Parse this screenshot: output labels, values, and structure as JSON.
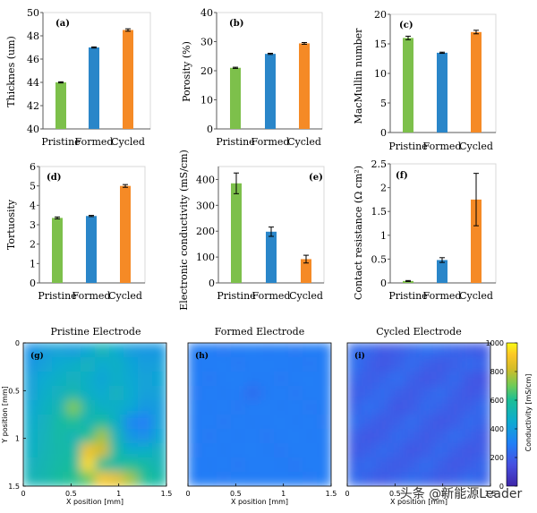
{
  "colors": {
    "pristine": "#7dc04b",
    "formed": "#2a86c9",
    "cycled": "#f58a26"
  },
  "chart_data": [
    {
      "type": "bar",
      "panel": "(a)",
      "ylabel": "Thicknes (um)",
      "categories": [
        "Pristine",
        "Formed",
        "Cycled"
      ],
      "values": [
        44.0,
        47.0,
        48.5
      ],
      "errors": [
        0.05,
        0.05,
        0.1
      ],
      "ylim": [
        40,
        50
      ],
      "yticks": [
        "40",
        "42",
        "44",
        "46",
        "48",
        "50"
      ]
    },
    {
      "type": "bar",
      "panel": "(b)",
      "ylabel": "Porosity (%)",
      "categories": [
        "Pristine",
        "Formed",
        "Cycled"
      ],
      "values": [
        21,
        25.8,
        29.4
      ],
      "errors": [
        0.2,
        0.2,
        0.3
      ],
      "ylim": [
        0,
        40
      ],
      "yticks": [
        "0",
        "10",
        "20",
        "30",
        "40"
      ]
    },
    {
      "type": "bar",
      "panel": "(c)",
      "ylabel": "MacMullin number",
      "categories": [
        "Pristine",
        "Formed",
        "Cycled"
      ],
      "values": [
        16.0,
        13.5,
        17.0
      ],
      "errors": [
        0.3,
        0.1,
        0.3
      ],
      "ylim": [
        0,
        20
      ],
      "yticks": [
        "0",
        "5",
        "10",
        "15",
        "20"
      ]
    },
    {
      "type": "bar",
      "panel": "(d)",
      "ylabel": "Tortuosity",
      "categories": [
        "Pristine",
        "Formed",
        "Cycled"
      ],
      "values": [
        3.35,
        3.45,
        5.0
      ],
      "errors": [
        0.05,
        0.03,
        0.07
      ],
      "ylim": [
        0,
        6
      ],
      "yticks": [
        "0",
        "1",
        "2",
        "3",
        "4",
        "5",
        "6"
      ]
    },
    {
      "type": "bar",
      "panel": "(e)",
      "ylabel": "Electronic conductivity (mS/cm)",
      "categories": [
        "Pristine",
        "Formed",
        "Cycled"
      ],
      "values": [
        385,
        198,
        92
      ],
      "errors": [
        40,
        18,
        15
      ],
      "ylim": [
        0,
        450
      ],
      "yticks": [
        "0",
        "100",
        "200",
        "300",
        "400"
      ]
    },
    {
      "type": "bar",
      "panel": "(f)",
      "ylabel": "Contact resistance (Ω cm²)",
      "categories": [
        "Pristine",
        "Formed",
        "Cycled"
      ],
      "values": [
        0.04,
        0.48,
        1.75
      ],
      "errors": [
        0.01,
        0.05,
        0.55
      ],
      "ylim": [
        0,
        2.5
      ],
      "yticks": [
        "0",
        "0.5",
        "1",
        "1.5",
        "2",
        "2.5"
      ]
    },
    {
      "type": "heatmap",
      "panel": "(g)",
      "title": "Pristine Electrode",
      "xlabel": "X position [mm]",
      "ylabel": "Y position [mm]",
      "xlim": [
        0,
        1.5
      ],
      "ylim": [
        0,
        1.5
      ],
      "xticks": [
        "0",
        "0.5",
        "1",
        "1.5"
      ],
      "yticks": [
        "0",
        "0.5",
        "1",
        "1.5"
      ],
      "rows": [
        [
          360,
          400,
          420,
          400,
          430,
          520,
          450,
          400,
          380,
          380
        ],
        [
          380,
          420,
          450,
          470,
          500,
          450,
          480,
          430,
          400,
          410
        ],
        [
          410,
          450,
          480,
          500,
          470,
          430,
          470,
          440,
          420,
          430
        ],
        [
          420,
          470,
          500,
          540,
          480,
          450,
          500,
          450,
          410,
          420
        ],
        [
          440,
          490,
          530,
          720,
          540,
          480,
          470,
          440,
          380,
          400
        ],
        [
          460,
          500,
          560,
          600,
          520,
          580,
          480,
          330,
          300,
          410
        ],
        [
          470,
          510,
          560,
          520,
          600,
          760,
          520,
          380,
          350,
          430
        ],
        [
          480,
          520,
          550,
          560,
          880,
          820,
          560,
          460,
          470,
          500
        ],
        [
          500,
          530,
          560,
          580,
          950,
          600,
          560,
          600,
          560,
          520
        ],
        [
          520,
          540,
          580,
          610,
          680,
          900,
          860,
          760,
          600,
          560
        ]
      ]
    },
    {
      "type": "heatmap",
      "panel": "(h)",
      "title": "Formed Electrode",
      "xlabel": "X position [mm]",
      "ylabel": "",
      "xlim": [
        0,
        1.5
      ],
      "ylim": [
        0,
        1.5
      ],
      "xticks": [
        "0",
        "0.5",
        "1",
        "1.5"
      ],
      "yticks": [],
      "rows": [
        [
          290,
          290,
          280,
          290,
          295,
          285,
          290,
          280,
          290,
          285
        ],
        [
          285,
          290,
          295,
          280,
          290,
          295,
          290,
          285,
          280,
          290
        ],
        [
          290,
          280,
          290,
          300,
          285,
          290,
          280,
          290,
          295,
          285
        ],
        [
          280,
          290,
          285,
          290,
          240,
          285,
          290,
          280,
          290,
          290
        ],
        [
          290,
          285,
          290,
          280,
          290,
          295,
          285,
          290,
          280,
          285
        ],
        [
          285,
          290,
          280,
          290,
          285,
          290,
          295,
          285,
          290,
          280
        ],
        [
          290,
          280,
          290,
          285,
          290,
          280,
          290,
          295,
          285,
          290
        ],
        [
          280,
          290,
          285,
          290,
          295,
          285,
          280,
          290,
          290,
          285
        ],
        [
          290,
          285,
          290,
          280,
          290,
          290,
          285,
          280,
          290,
          290
        ],
        [
          285,
          290,
          280,
          290,
          285,
          290,
          290,
          285,
          280,
          290
        ]
      ]
    },
    {
      "type": "heatmap",
      "panel": "(i)",
      "title": "Cycled Electrode",
      "xlabel": "X position [mm]",
      "ylabel": "",
      "xlim": [
        0,
        1.5
      ],
      "ylim": [
        0,
        1.5
      ],
      "xticks": [
        "0",
        "0.5",
        "1",
        "1.5"
      ],
      "yticks": [],
      "rows": [
        [
          230,
          220,
          180,
          190,
          220,
          250,
          230,
          210,
          190,
          180
        ],
        [
          250,
          200,
          170,
          200,
          240,
          200,
          180,
          200,
          230,
          210
        ],
        [
          220,
          190,
          210,
          250,
          200,
          170,
          190,
          230,
          180,
          160
        ],
        [
          190,
          210,
          240,
          200,
          180,
          210,
          240,
          200,
          170,
          190
        ],
        [
          210,
          250,
          220,
          170,
          190,
          230,
          210,
          180,
          200,
          230
        ],
        [
          240,
          210,
          180,
          200,
          240,
          200,
          170,
          190,
          230,
          210
        ],
        [
          200,
          170,
          190,
          230,
          210,
          180,
          200,
          240,
          210,
          180
        ],
        [
          180,
          200,
          230,
          210,
          170,
          190,
          230,
          200,
          170,
          190
        ],
        [
          210,
          230,
          200,
          180,
          200,
          240,
          200,
          170,
          190,
          220
        ],
        [
          230,
          200,
          180,
          210,
          230,
          210,
          180,
          200,
          230,
          210
        ]
      ]
    }
  ],
  "colorbar": {
    "label": "Conductivity [mS/cm]",
    "ticks": [
      "0",
      "200",
      "400",
      "600",
      "800",
      "1000"
    ],
    "range": [
      0,
      1000
    ]
  },
  "watermark": "头条 @新能源Leader"
}
